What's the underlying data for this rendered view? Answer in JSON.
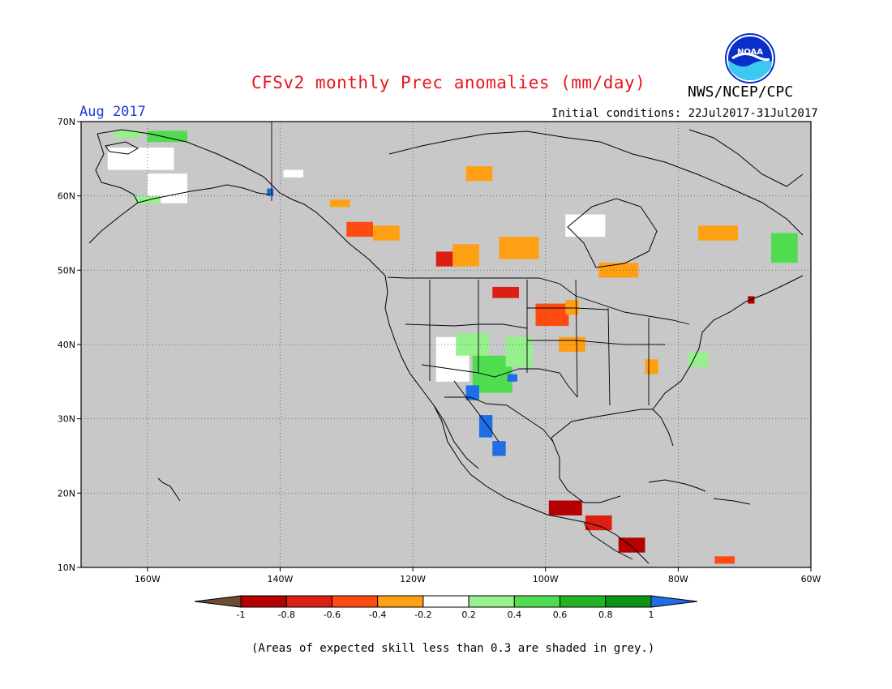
{
  "header": {
    "title": "CFSv2 monthly Prec anomalies (mm/day)",
    "agency": "NWS/NCEP/CPC",
    "month": "Aug 2017",
    "initial_conditions": "Initial conditions: 22Jul2017-31Jul2017",
    "logo_text": "NOAA"
  },
  "footer": {
    "skill_note": "(Areas of expected skill less than 0.3 are shaded in grey.)"
  },
  "map": {
    "lon_range": [
      -170,
      -60
    ],
    "lat_range": [
      10,
      70
    ],
    "lon_ticks": [
      {
        "value": -160,
        "label": "160W"
      },
      {
        "value": -140,
        "label": "140W"
      },
      {
        "value": -120,
        "label": "120W"
      },
      {
        "value": -100,
        "label": "100W"
      },
      {
        "value": -80,
        "label": "80W"
      },
      {
        "value": -60,
        "label": "60W"
      }
    ],
    "lat_ticks": [
      {
        "value": 70,
        "label": "70N"
      },
      {
        "value": 60,
        "label": "60N"
      },
      {
        "value": 50,
        "label": "50N"
      },
      {
        "value": 40,
        "label": "40N"
      },
      {
        "value": 30,
        "label": "30N"
      },
      {
        "value": 20,
        "label": "20N"
      },
      {
        "value": 10,
        "label": "10N"
      }
    ],
    "background_color": "#c8c8c8",
    "grid": true
  },
  "legend": {
    "levels": [
      "-1",
      "-0.8",
      "-0.6",
      "-0.4",
      "-0.2",
      "0.2",
      "0.4",
      "0.6",
      "0.8",
      "1"
    ],
    "low_end_color": "#6e4b32",
    "high_end_color": "#1e6ee6",
    "bin_colors": [
      "#b40000",
      "#dc1e14",
      "#ff4b0f",
      "#ffa014",
      "#ffffff",
      "#96f08c",
      "#50dc50",
      "#23b423",
      "#0a9614"
    ]
  },
  "anomaly_cells": [
    {
      "lon": -157,
      "lat": 68,
      "w": 6,
      "h": 1.5,
      "color": "#50dc50"
    },
    {
      "lon": -163,
      "lat": 68.3,
      "w": 4,
      "h": 1,
      "color": "#96f08c"
    },
    {
      "lon": -161,
      "lat": 65,
      "w": 10,
      "h": 3,
      "color": "#ffffff"
    },
    {
      "lon": -157,
      "lat": 61,
      "w": 6,
      "h": 4,
      "color": "#ffffff"
    },
    {
      "lon": -160,
      "lat": 59.5,
      "w": 4,
      "h": 1,
      "color": "#96f08c"
    },
    {
      "lon": -141.5,
      "lat": 60.5,
      "w": 1,
      "h": 1,
      "color": "#1e6ee6"
    },
    {
      "lon": -138,
      "lat": 63,
      "w": 3,
      "h": 1,
      "color": "#ffffff"
    },
    {
      "lon": -131,
      "lat": 59,
      "w": 3,
      "h": 1,
      "color": "#ffa014"
    },
    {
      "lon": -128,
      "lat": 55.5,
      "w": 4,
      "h": 2,
      "color": "#ff4b0f"
    },
    {
      "lon": -124,
      "lat": 55,
      "w": 4,
      "h": 2,
      "color": "#ffa014"
    },
    {
      "lon": -115,
      "lat": 51.5,
      "w": 3,
      "h": 2,
      "color": "#dc1e14"
    },
    {
      "lon": -112,
      "lat": 52,
      "w": 4,
      "h": 3,
      "color": "#ffa014"
    },
    {
      "lon": -104,
      "lat": 53,
      "w": 6,
      "h": 3,
      "color": "#ffa014"
    },
    {
      "lon": -106,
      "lat": 47,
      "w": 4,
      "h": 1.5,
      "color": "#dc1e14"
    },
    {
      "lon": -99,
      "lat": 44,
      "w": 5,
      "h": 3,
      "color": "#ff4b0f"
    },
    {
      "lon": -96,
      "lat": 45,
      "w": 2,
      "h": 2,
      "color": "#ffa014"
    },
    {
      "lon": -89,
      "lat": 50,
      "w": 6,
      "h": 2,
      "color": "#ffa014"
    },
    {
      "lon": -74,
      "lat": 55,
      "w": 6,
      "h": 2,
      "color": "#ffa014"
    },
    {
      "lon": -64,
      "lat": 53,
      "w": 4,
      "h": 4,
      "color": "#50dc50"
    },
    {
      "lon": -94,
      "lat": 56,
      "w": 6,
      "h": 3,
      "color": "#ffffff"
    },
    {
      "lon": -110,
      "lat": 63,
      "w": 4,
      "h": 2,
      "color": "#ffa014"
    },
    {
      "lon": -108,
      "lat": 36,
      "w": 6,
      "h": 5,
      "color": "#50dc50"
    },
    {
      "lon": -111,
      "lat": 33.5,
      "w": 2,
      "h": 2,
      "color": "#1e6ee6"
    },
    {
      "lon": -109,
      "lat": 29,
      "w": 2,
      "h": 3,
      "color": "#1e6ee6"
    },
    {
      "lon": -107,
      "lat": 26,
      "w": 2,
      "h": 2,
      "color": "#1e6ee6"
    },
    {
      "lon": -105,
      "lat": 35.5,
      "w": 1.5,
      "h": 1,
      "color": "#1e6ee6"
    },
    {
      "lon": -114,
      "lat": 38,
      "w": 5,
      "h": 6,
      "color": "#ffffff"
    },
    {
      "lon": -111,
      "lat": 40,
      "w": 5,
      "h": 3,
      "color": "#96f08c"
    },
    {
      "lon": -104,
      "lat": 39,
      "w": 4,
      "h": 4,
      "color": "#96f08c"
    },
    {
      "lon": -96,
      "lat": 40,
      "w": 4,
      "h": 2,
      "color": "#ffa014"
    },
    {
      "lon": -97,
      "lat": 18,
      "w": 5,
      "h": 2,
      "color": "#b40000"
    },
    {
      "lon": -92,
      "lat": 16,
      "w": 4,
      "h": 2,
      "color": "#dc1e14"
    },
    {
      "lon": -87,
      "lat": 13,
      "w": 4,
      "h": 2,
      "color": "#b40000"
    },
    {
      "lon": -84,
      "lat": 37,
      "w": 2,
      "h": 2,
      "color": "#ffa014"
    },
    {
      "lon": -77,
      "lat": 38,
      "w": 3,
      "h": 2,
      "color": "#96f08c"
    },
    {
      "lon": -73,
      "lat": 11,
      "w": 3,
      "h": 1,
      "color": "#ff4b0f"
    },
    {
      "lon": -69,
      "lat": 46,
      "w": 1,
      "h": 1,
      "color": "#b40000"
    }
  ]
}
